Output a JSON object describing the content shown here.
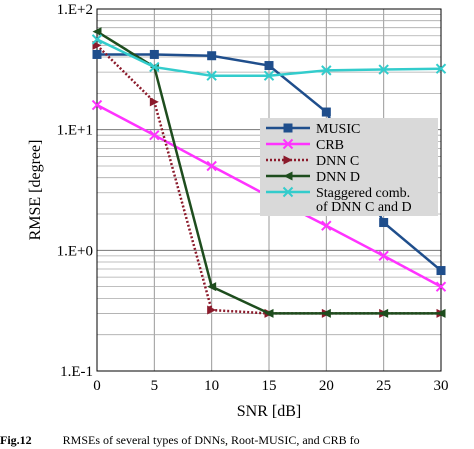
{
  "chart_data": {
    "type": "line",
    "title": "",
    "xlabel": "SNR [dB]",
    "ylabel": "RMSE [degree]",
    "x": [
      0,
      5,
      10,
      15,
      20,
      25,
      30
    ],
    "xlim": [
      0,
      30
    ],
    "ylim": [
      0.1,
      100
    ],
    "yscale": "log",
    "grid": true,
    "x_tick_labels": [
      "0",
      "5",
      "10",
      "15",
      "20",
      "25",
      "30"
    ],
    "y_tick_values": [
      0.1,
      1,
      10,
      100
    ],
    "y_tick_labels": [
      "1.E-1",
      "1.E+0",
      "1.E+1",
      "1.E+2"
    ],
    "legend_position": "right",
    "series": [
      {
        "name": "MUSIC",
        "color": "#1f4e8c",
        "line": "solid",
        "marker": "square",
        "values": [
          42,
          42,
          41,
          34,
          14,
          1.7,
          0.68
        ]
      },
      {
        "name": "CRB",
        "color": "#ff33ff",
        "line": "solid",
        "marker": "x",
        "values": [
          16,
          9,
          5,
          2.8,
          1.6,
          0.9,
          0.5
        ]
      },
      {
        "name": "DNN C",
        "color": "#8b1a2b",
        "line": "dotted",
        "marker": "triangle-right",
        "values": [
          50,
          17,
          0.32,
          0.3,
          0.3,
          0.3,
          0.3
        ]
      },
      {
        "name": "DNN D",
        "color": "#1e4d1e",
        "line": "solid",
        "marker": "triangle-left",
        "values": [
          65,
          33,
          0.5,
          0.3,
          0.3,
          0.3,
          0.3
        ]
      },
      {
        "name": "Staggered comb. of DNN C and D",
        "name_lines": [
          "Staggered comb.",
          "of DNN C and D"
        ],
        "color": "#33cccc",
        "line": "solid",
        "marker": "x",
        "values": [
          56,
          33,
          28,
          28,
          31,
          31.5,
          32
        ]
      }
    ]
  },
  "caption": {
    "prefix": "Fig.12",
    "text": "RMSEs of several types of DNNs, Root-MUSIC, and CRB fo"
  }
}
